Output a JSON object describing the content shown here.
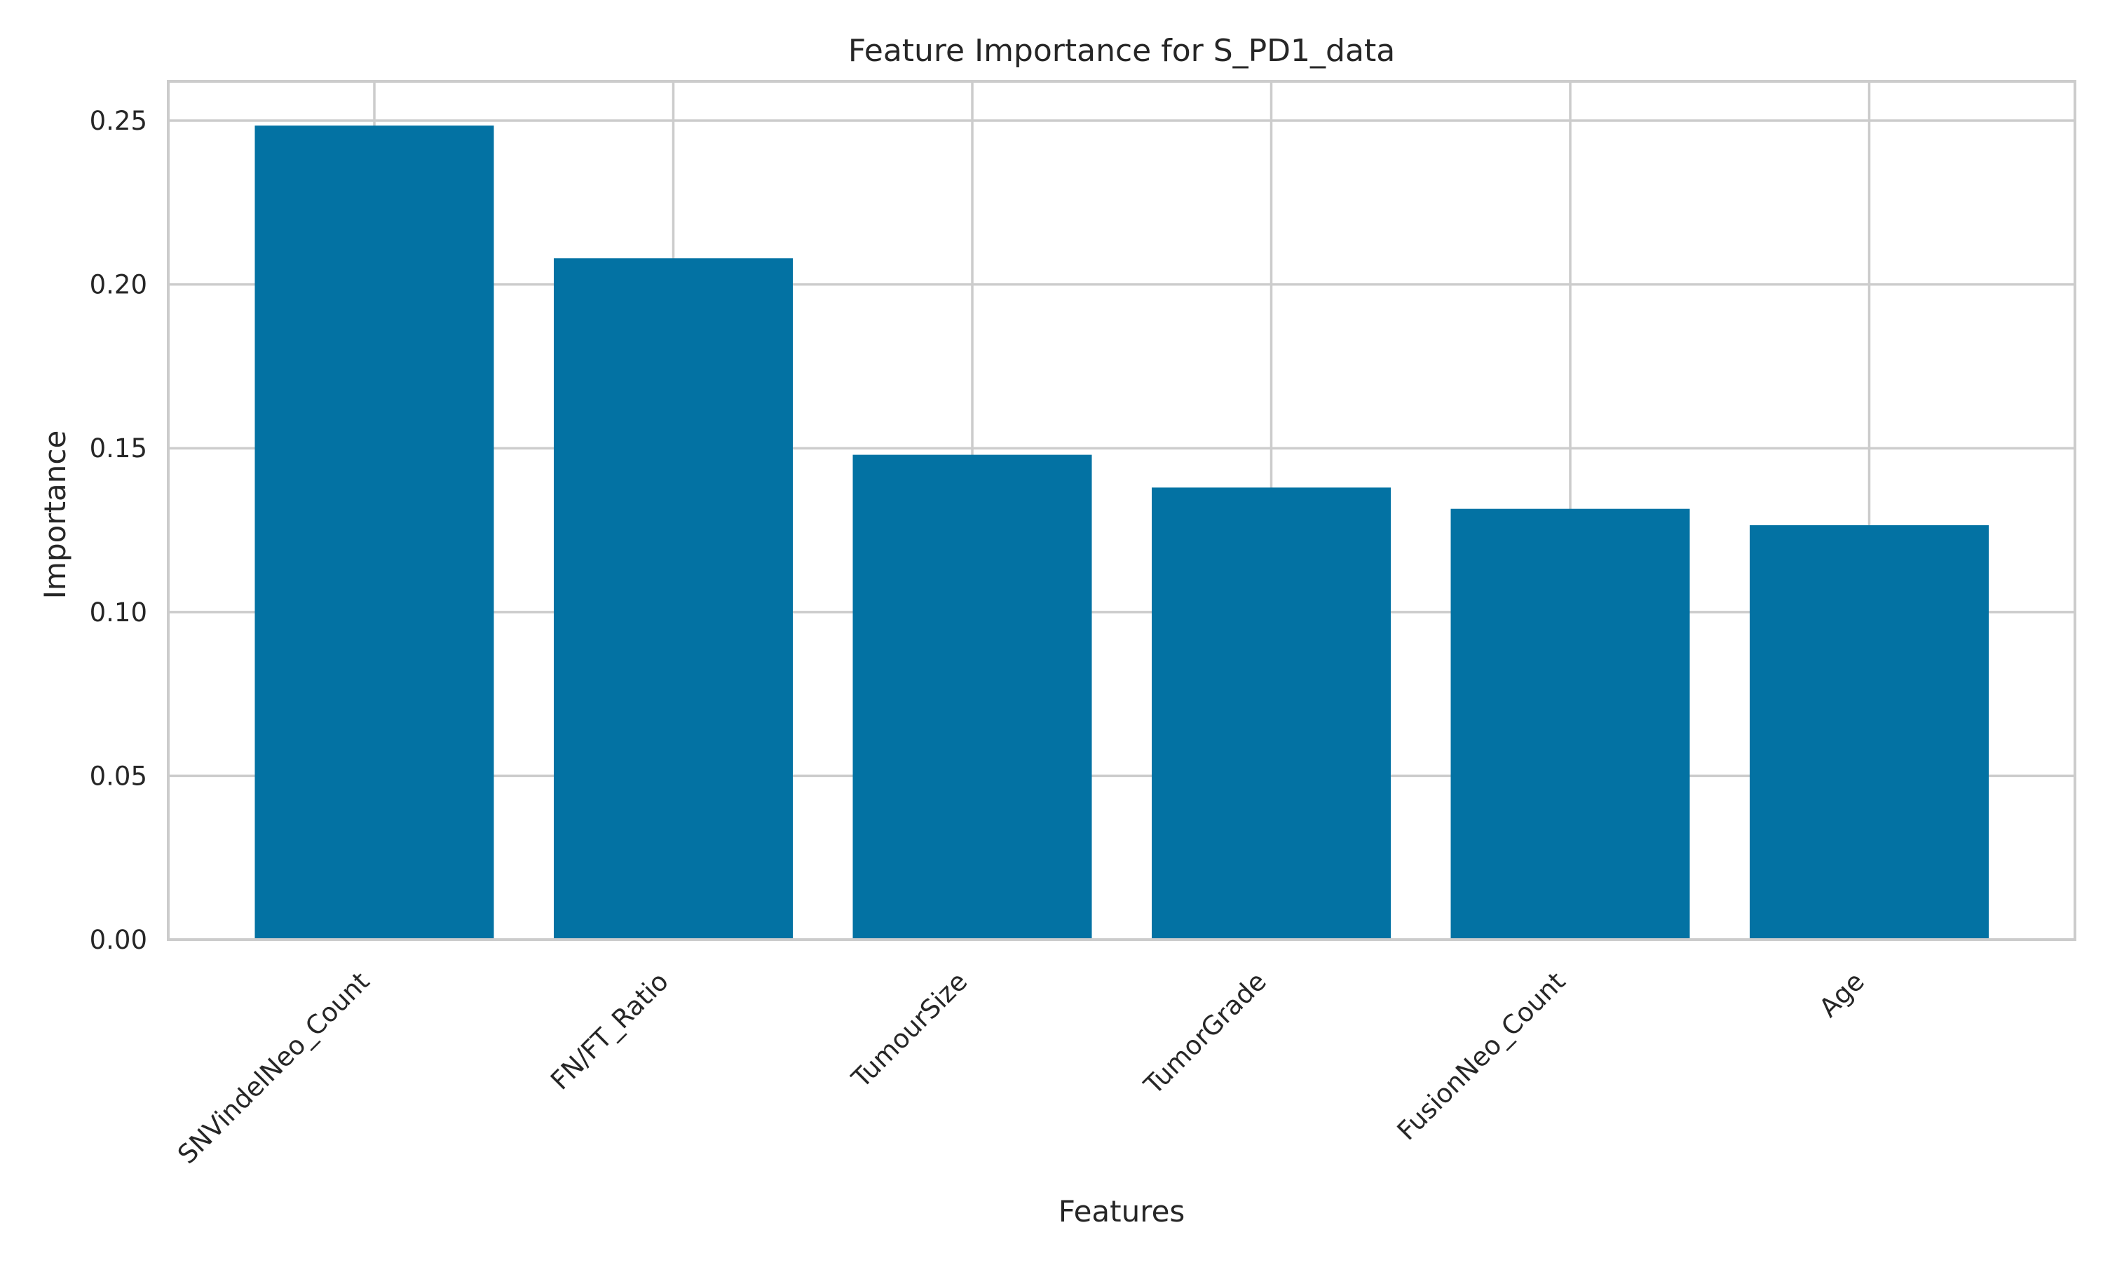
{
  "chart_data": {
    "type": "bar",
    "title": "Feature Importance for S_PD1_data",
    "xlabel": "Features",
    "ylabel": "Importance",
    "categories": [
      "SNVindelNeo_Count",
      "FN/FT_Ratio",
      "TumourSize",
      "TumorGrade",
      "FusionNeo_Count",
      "Age"
    ],
    "values": [
      0.2485,
      0.208,
      0.148,
      0.138,
      0.1315,
      0.1265
    ],
    "ylim": [
      0,
      0.262
    ],
    "yticks": [
      0.0,
      0.05,
      0.1,
      0.15,
      0.2,
      0.25
    ],
    "ytick_labels": [
      "0.00",
      "0.05",
      "0.10",
      "0.15",
      "0.20",
      "0.25"
    ],
    "grid": true,
    "bar_color": "#0372a3",
    "grid_color": "#cccccc",
    "axes_edge_color": "#cccccc"
  }
}
